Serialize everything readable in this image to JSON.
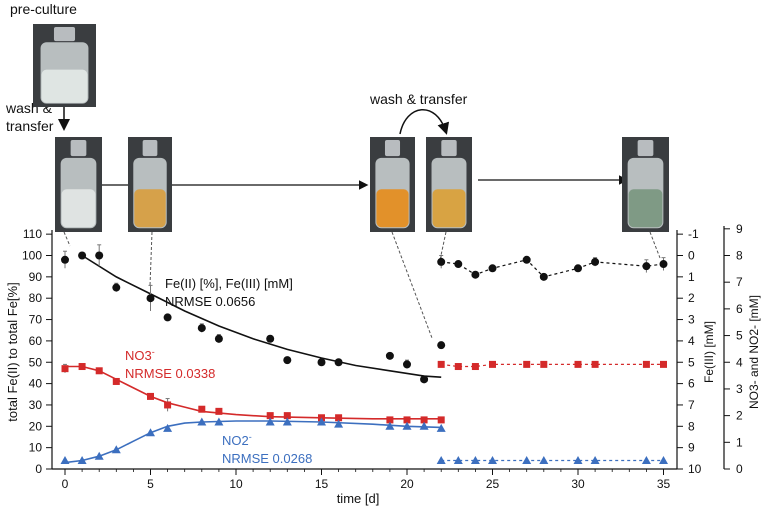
{
  "labels": {
    "preculture": "pre-culture",
    "wash1_line1": "wash &",
    "wash1_line2": "transfer",
    "wash2": "wash & transfer"
  },
  "photos": [
    {
      "name": "preculture-bottle-photo",
      "content": "clear",
      "fill": "#dfe5e3"
    },
    {
      "name": "day0-bottle-photo",
      "content": "white-turbid",
      "fill": "#dfe3e2"
    },
    {
      "name": "day5-bottle-photo",
      "content": "yellow-orange",
      "fill": "#d6a14a"
    },
    {
      "name": "day21-bottle-photo",
      "content": "orange",
      "fill": "#e2912a"
    },
    {
      "name": "day22-bottle-photo",
      "content": "yellow-orange",
      "fill": "#d8a343"
    },
    {
      "name": "day35-bottle-photo",
      "content": "green-grey",
      "fill": "#7f9a85"
    }
  ],
  "colors": {
    "black": "#111111",
    "red": "#d42a2a",
    "blue": "#3c6fbf"
  },
  "chart_data": {
    "type": "scatter",
    "xlabel": "time [d]",
    "ylabel_left": "total Fe(II) to total Fe[%]",
    "ylabel_right_inner": "Fe(III) [mM]",
    "ylabel_right_outer": "NO3- and NO2- [mM]",
    "x_range": [
      -1,
      36
    ],
    "y_left_range": [
      0,
      110
    ],
    "y_left_ticks": [
      "0",
      "10",
      "20",
      "30",
      "40",
      "50",
      "60",
      "70",
      "80",
      "90",
      "100",
      "110"
    ],
    "y_fe3_ticks": [
      "-1",
      "0",
      "1",
      "2",
      "3",
      "4",
      "5",
      "6",
      "7",
      "8",
      "9",
      "10"
    ],
    "y_no_ticks": [
      "0",
      "1",
      "2",
      "3",
      "4",
      "5",
      "6",
      "7",
      "8",
      "9"
    ],
    "x_ticks": [
      "0",
      "5",
      "10",
      "15",
      "20",
      "25",
      "30",
      "35"
    ],
    "annotations": {
      "fe_label": "Fe(II) [%], Fe(III) [mM]",
      "fe_nrmse": "NRMSE 0.0656",
      "no3_label": "NO3",
      "no3_sup": "-",
      "no3_nrmse": "NRMSE 0.0338",
      "no2_label": "NO2",
      "no2_sup": "-",
      "no2_nrmse": "NRMSE 0.0268"
    },
    "series": [
      {
        "name": "Fe(II) %",
        "marker": "circle",
        "color": "#111111",
        "points": [
          [
            0,
            98
          ],
          [
            1,
            100
          ],
          [
            2,
            100
          ],
          [
            3,
            85
          ],
          [
            5,
            80
          ],
          [
            6,
            71
          ],
          [
            8,
            66
          ],
          [
            9,
            61
          ],
          [
            12,
            61
          ],
          [
            13,
            51
          ],
          [
            15,
            50
          ],
          [
            16,
            50
          ],
          [
            19,
            53
          ],
          [
            20,
            49
          ],
          [
            21,
            42
          ],
          [
            22,
            58
          ]
        ],
        "errors": [
          4,
          1,
          5,
          2,
          6,
          1,
          2,
          2,
          1,
          1,
          1,
          1,
          1,
          2,
          1,
          1
        ]
      },
      {
        "name": "Fe(III) mM (day 22-35)",
        "marker": "circle",
        "color": "#111111",
        "style": "dashed",
        "points": [
          [
            22,
            97
          ],
          [
            23,
            96
          ],
          [
            24,
            91
          ],
          [
            25,
            94
          ],
          [
            27,
            98
          ],
          [
            28,
            90
          ],
          [
            30,
            94
          ],
          [
            31,
            97
          ],
          [
            34,
            95
          ],
          [
            35,
            96
          ]
        ],
        "errors": [
          3,
          1,
          1,
          1,
          1,
          1,
          1,
          2,
          3,
          3
        ]
      },
      {
        "name": "NO3- mM",
        "marker": "square",
        "color": "#d42a2a",
        "points": [
          [
            0,
            47
          ],
          [
            1,
            48
          ],
          [
            2,
            46
          ],
          [
            3,
            41
          ],
          [
            5,
            34
          ],
          [
            6,
            30
          ],
          [
            8,
            28
          ],
          [
            9,
            27
          ],
          [
            12,
            25
          ],
          [
            13,
            25
          ],
          [
            15,
            24
          ],
          [
            16,
            24
          ],
          [
            19,
            23
          ],
          [
            20,
            23
          ],
          [
            21,
            23
          ],
          [
            22,
            23
          ]
        ],
        "errors": [
          2,
          1,
          1,
          1,
          1,
          3,
          1,
          1,
          1,
          1,
          1,
          1,
          1,
          1,
          1,
          1
        ]
      },
      {
        "name": "NO3- mM (day 22-35)",
        "marker": "square",
        "color": "#d42a2a",
        "style": "dashed",
        "points": [
          [
            22,
            49
          ],
          [
            23,
            48
          ],
          [
            24,
            48
          ],
          [
            25,
            49
          ],
          [
            27,
            49
          ],
          [
            28,
            49
          ],
          [
            30,
            49
          ],
          [
            31,
            49
          ],
          [
            34,
            49
          ],
          [
            35,
            49
          ]
        ]
      },
      {
        "name": "NO2- mM",
        "marker": "triangle",
        "color": "#3c6fbf",
        "points": [
          [
            0,
            4
          ],
          [
            1,
            4
          ],
          [
            2,
            6
          ],
          [
            3,
            9
          ],
          [
            5,
            17
          ],
          [
            6,
            19
          ],
          [
            8,
            22
          ],
          [
            9,
            22
          ],
          [
            12,
            22
          ],
          [
            13,
            22
          ],
          [
            15,
            22
          ],
          [
            16,
            21
          ],
          [
            19,
            20
          ],
          [
            20,
            20
          ],
          [
            21,
            20
          ],
          [
            22,
            19
          ]
        ]
      },
      {
        "name": "NO2- mM (day 22-35)",
        "marker": "triangle",
        "color": "#3c6fbf",
        "style": "dashed",
        "points": [
          [
            22,
            4
          ],
          [
            23,
            4
          ],
          [
            24,
            4
          ],
          [
            25,
            4
          ],
          [
            27,
            4
          ],
          [
            28,
            4
          ],
          [
            30,
            4
          ],
          [
            31,
            4
          ],
          [
            34,
            4
          ],
          [
            35,
            4
          ]
        ]
      }
    ],
    "fits": [
      {
        "name": "fe-fit",
        "color": "#111111",
        "points": [
          [
            1,
            100
          ],
          [
            3,
            90
          ],
          [
            5,
            82
          ],
          [
            7,
            74
          ],
          [
            9,
            67
          ],
          [
            11,
            61
          ],
          [
            13,
            56
          ],
          [
            15,
            52
          ],
          [
            17,
            48.5
          ],
          [
            19,
            46
          ],
          [
            21,
            43.5
          ],
          [
            22,
            43
          ]
        ]
      },
      {
        "name": "no3-fit",
        "color": "#d42a2a",
        "points": [
          [
            0,
            48
          ],
          [
            1,
            48
          ],
          [
            2,
            46
          ],
          [
            3,
            42
          ],
          [
            4,
            38
          ],
          [
            5,
            34
          ],
          [
            6,
            31
          ],
          [
            7,
            29
          ],
          [
            8,
            27
          ],
          [
            10,
            25.5
          ],
          [
            12,
            24.5
          ],
          [
            15,
            24
          ],
          [
            18,
            23.5
          ],
          [
            22,
            23.5
          ]
        ]
      },
      {
        "name": "no2-fit",
        "color": "#3c6fbf",
        "points": [
          [
            0,
            3
          ],
          [
            1,
            4
          ],
          [
            2,
            6
          ],
          [
            3,
            9
          ],
          [
            4,
            13
          ],
          [
            5,
            17
          ],
          [
            6,
            20
          ],
          [
            7,
            21.5
          ],
          [
            8,
            22
          ],
          [
            10,
            22.5
          ],
          [
            12,
            22.5
          ],
          [
            15,
            22
          ],
          [
            18,
            21
          ],
          [
            20,
            20
          ],
          [
            22,
            19.5
          ]
        ]
      }
    ]
  }
}
